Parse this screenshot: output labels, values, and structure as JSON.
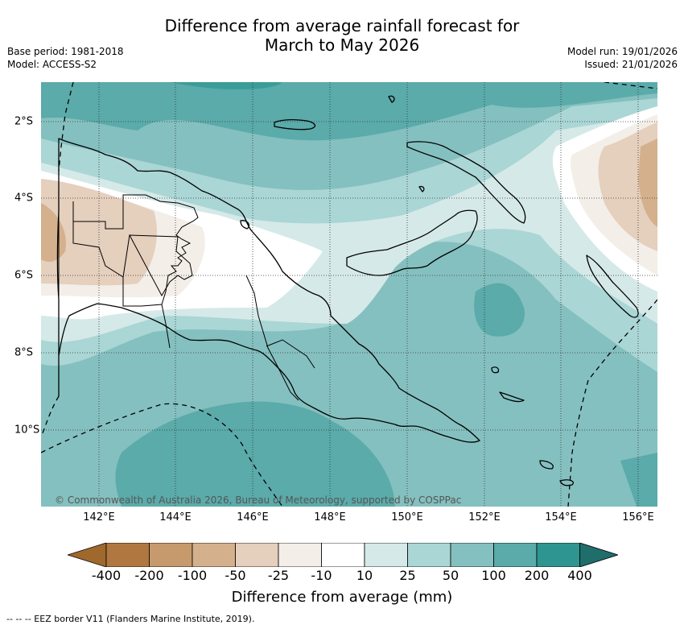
{
  "title_line1": "Difference from average rainfall forecast for",
  "title_line2": "March to May 2026",
  "base_period": "Base period: 1981-2018",
  "model": "Model: ACCESS-S2",
  "model_run": "Model run: 19/01/2026",
  "issued": "Issued: 21/01/2026",
  "x_ticks": [
    "142°E",
    "144°E",
    "146°E",
    "148°E",
    "150°E",
    "152°E",
    "154°E",
    "156°E"
  ],
  "y_ticks": [
    "2°S",
    "4°S",
    "6°S",
    "8°S",
    "10°S"
  ],
  "copyright": "© Commonwealth of Australia 2026, Bureau of Meteorology, supported by COSPPac",
  "colorbar": {
    "title": "Difference from average (mm)",
    "labels": [
      "-400",
      "-200",
      "-100",
      "-50",
      "-25",
      "-10",
      "10",
      "25",
      "50",
      "100",
      "200",
      "400"
    ],
    "colors": [
      "#a0682d",
      "#b07840",
      "#c69a6d",
      "#d4b08d",
      "#e5cfbd",
      "#f3eee8",
      "#ffffff",
      "#d5e9e8",
      "#aad6d5",
      "#84c0bf",
      "#5aabaa",
      "#2e9590",
      "#1f6e6b"
    ]
  },
  "footer": "--  --  -- EEZ border V11 (Flanders Marine Institute, 2019)."
}
